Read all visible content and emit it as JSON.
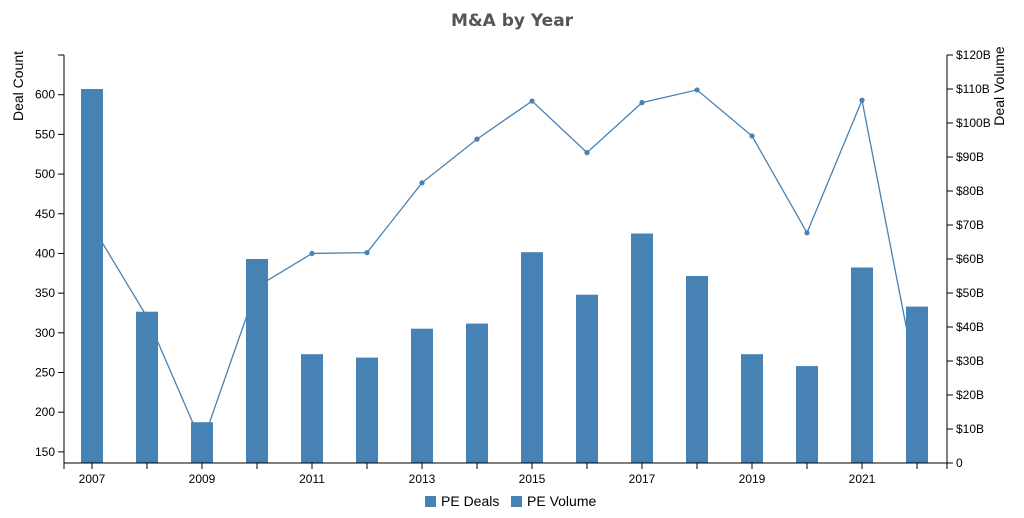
{
  "chart_data": {
    "type": "bar",
    "title": "M&A by Year",
    "x": [
      2007,
      2008,
      2009,
      2010,
      2011,
      2012,
      2013,
      2014,
      2015,
      2016,
      2017,
      2018,
      2019,
      2020,
      2021,
      2022
    ],
    "xticks": [
      "2007",
      "2009",
      "2011",
      "2013",
      "2015",
      "2017",
      "2019",
      "2021"
    ],
    "xlim": [
      2007,
      2022
    ],
    "left_axis": {
      "label": "Deal Count",
      "ticks": [
        "150",
        "200",
        "250",
        "300",
        "350",
        "400",
        "450",
        "500",
        "550",
        "600"
      ],
      "ylim": [
        136,
        650
      ]
    },
    "right_axis": {
      "label": "Deal Volume",
      "ticks": [
        "0",
        "$10B",
        "$20B",
        "$30B",
        "$40B",
        "$50B",
        "$60B",
        "$70B",
        "$80B",
        "$90B",
        "$100B",
        "$110B",
        "$120B"
      ],
      "ylim": [
        0,
        120
      ]
    },
    "series": [
      {
        "name": "PE Deals",
        "kind": "line",
        "axis": "left",
        "color": "#4682b4",
        "values": [
          435,
          320,
          160,
          358,
          400,
          401,
          489,
          544,
          592,
          527,
          590,
          606,
          548,
          426,
          593,
          238
        ]
      },
      {
        "name": "PE Volume",
        "kind": "bar",
        "axis": "right",
        "color": "#4682b4",
        "values": [
          110,
          44.5,
          12,
          60,
          32,
          31,
          39.5,
          41,
          62,
          49.5,
          67.5,
          55,
          32,
          28.5,
          57.5,
          46
        ]
      }
    ],
    "legend": "bottom-center",
    "grid": false
  }
}
